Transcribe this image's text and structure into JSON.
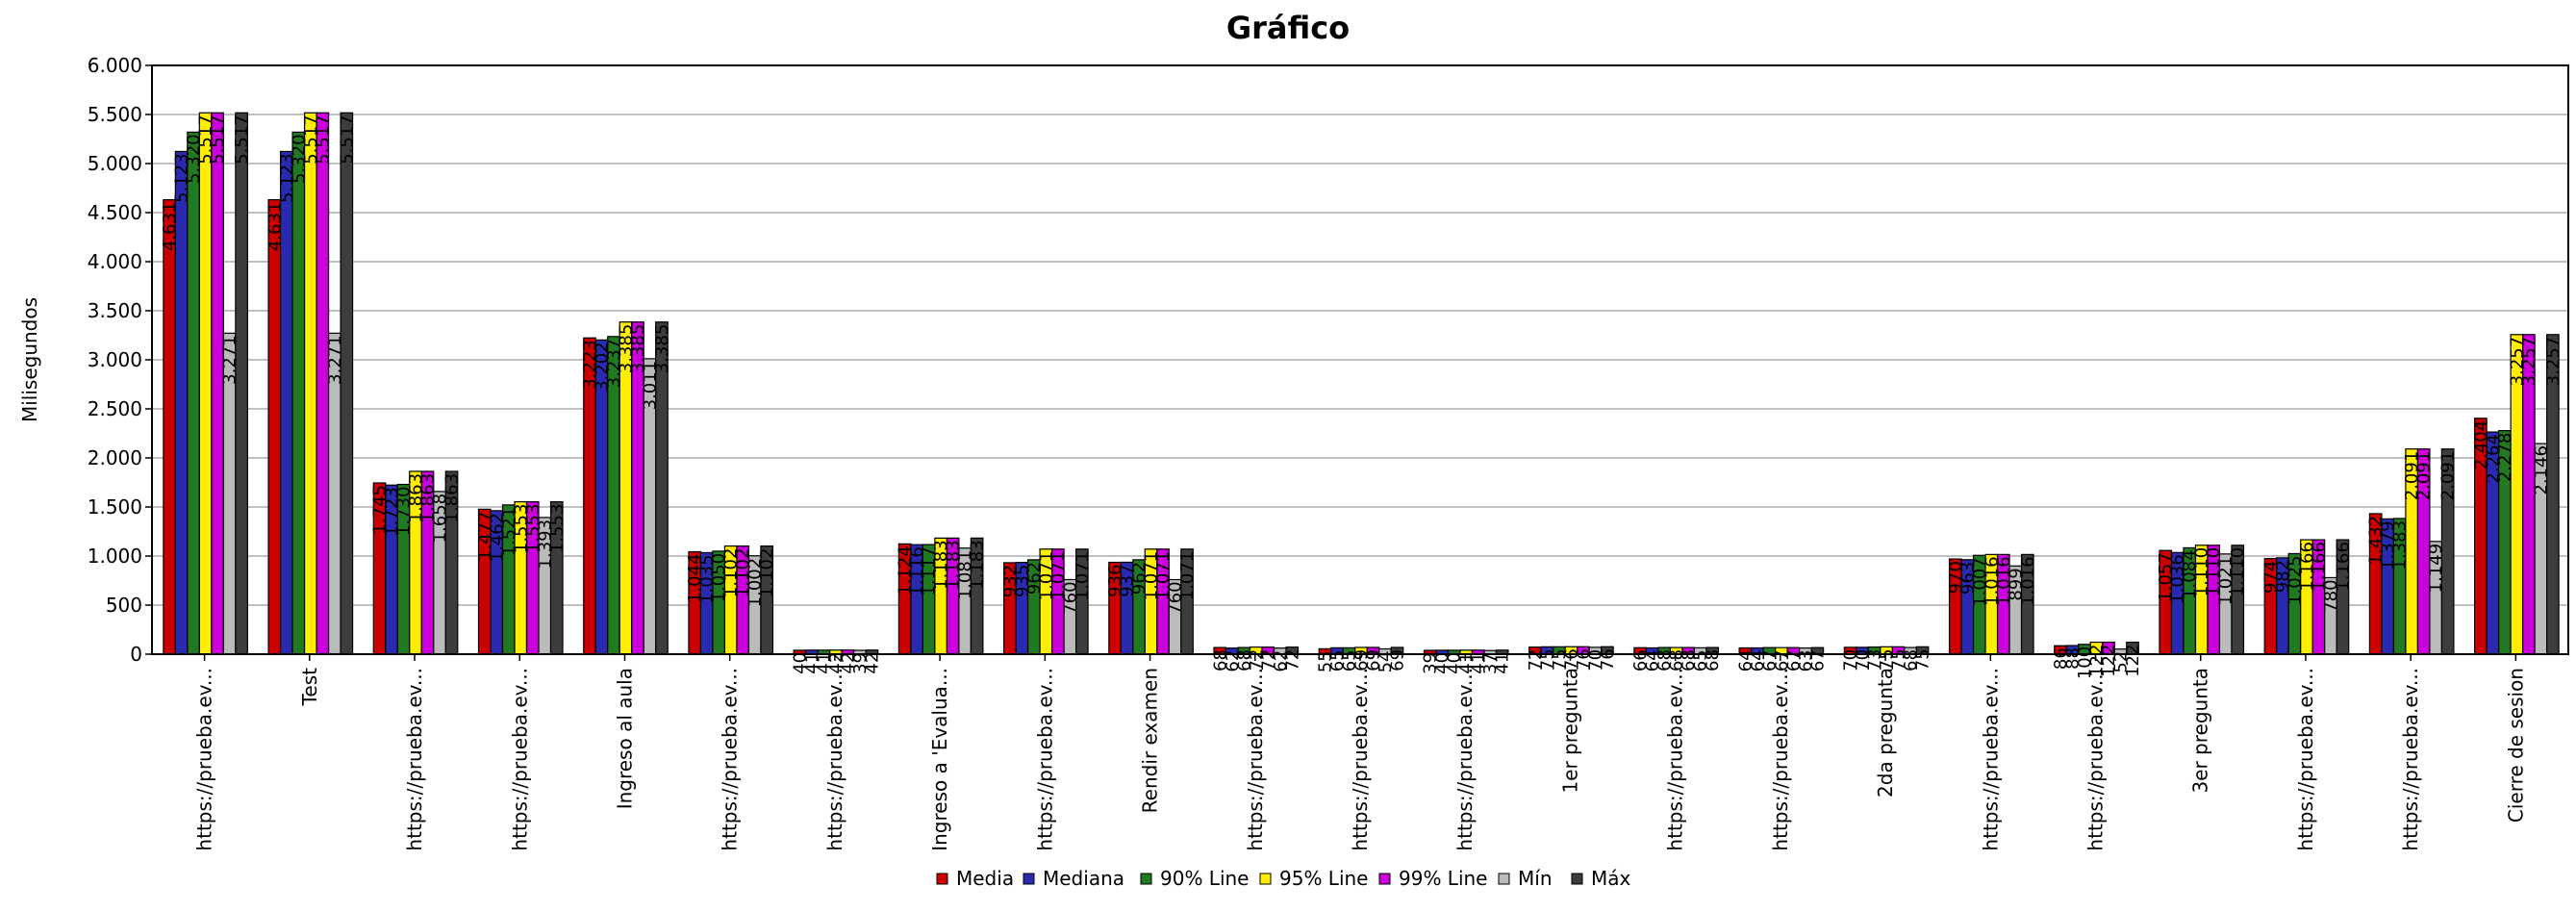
{
  "chart_data": {
    "type": "bar",
    "title": "Gráfico",
    "xlabel": "",
    "ylabel": "Milisegundos",
    "ylim": [
      0,
      6000
    ],
    "yticks": [
      0,
      500,
      1000,
      1500,
      2000,
      2500,
      3000,
      3500,
      4000,
      4500,
      5000,
      5500,
      6000
    ],
    "ytick_labels": [
      "0",
      "500",
      "1.000",
      "1.500",
      "2.000",
      "2.500",
      "3.000",
      "3.500",
      "4.000",
      "4.500",
      "5.000",
      "5.500",
      "6.000"
    ],
    "grid": true,
    "legend_position": "bottom-center",
    "categories": [
      "https://prueba.ev...",
      "Test",
      "https://prueba.ev...",
      "https://prueba.ev...",
      "Ingreso al aula",
      "https://prueba.ev...",
      "https://prueba.ev...",
      "Ingreso a 'Evalua...",
      "https://prueba.ev...",
      "Rendir examen",
      "https://prueba.ev...",
      "https://prueba.ev...",
      "https://prueba.ev...",
      "1er pregunta",
      "https://prueba.ev...",
      "https://prueba.ev...",
      "2da pregunta",
      "https://prueba.ev...",
      "https://prueba.ev...",
      "3er pregunta",
      "https://prueba.ev...",
      "https://prueba.ev...",
      "Cierre de sesion"
    ],
    "series": [
      {
        "name": "Media",
        "color": "#cc0000",
        "values": [
          4631,
          4631,
          1745,
          1477,
          3223,
          1044,
          40,
          1124,
          932,
          936,
          68,
          55,
          39,
          72,
          66,
          64,
          70,
          970,
          86,
          1057,
          974,
          1432,
          2404
        ],
        "labels": [
          "4.631",
          "4.631",
          "1.745",
          "1.477",
          "3.223",
          "1.044",
          "40",
          "1.124",
          "932",
          "936",
          "68",
          "55",
          "39",
          "72",
          "66",
          "64",
          "70",
          "970",
          "86",
          "1.057",
          "974",
          "1.432",
          "2.404"
        ]
      },
      {
        "name": "Mediana",
        "color": "#2a2ab0",
        "values": [
          5123,
          5123,
          1723,
          1462,
          3202,
          1035,
          41,
          1116,
          935,
          937,
          62,
          65,
          40,
          75,
          64,
          64,
          70,
          963,
          88,
          1036,
          982,
          1379,
          2264
        ],
        "labels": [
          "5.123",
          "5.123",
          "1.723",
          "1.462",
          "3.202",
          "1.035",
          "41",
          "1.116",
          "935",
          "937",
          "62",
          "65",
          "40",
          "75",
          "64",
          "64",
          "70",
          "963",
          "88",
          "1.036",
          "982",
          "1.379",
          "2.264"
        ]
      },
      {
        "name": "90% Line",
        "color": "#217a21",
        "values": [
          5320,
          5320,
          1730,
          1521,
          3237,
          1050,
          41,
          1117,
          962,
          962,
          68,
          65,
          40,
          75,
          68,
          67,
          73,
          1007,
          100,
          1084,
          1025,
          1383,
          2278
        ],
        "labels": [
          "5.320",
          "5.320",
          "1.730",
          "1.521",
          "3.237",
          "1.050",
          "41",
          "1.117",
          "962",
          "962",
          "68",
          "65",
          "40",
          "75",
          "68",
          "67",
          "73",
          "1.007",
          "100",
          "1.084",
          "1.025",
          "1.383",
          "2.278"
        ]
      },
      {
        "name": "95% Line",
        "color": "#ffee00",
        "values": [
          5517,
          5517,
          1863,
          1553,
          3385,
          1102,
          42,
          1183,
          1071,
          1071,
          72,
          69,
          41,
          76,
          68,
          67,
          75,
          1016,
          122,
          1110,
          1166,
          2091,
          3257
        ],
        "labels": [
          "5.517",
          "5.517",
          "1.863",
          "1.553",
          "3.385",
          "1.102",
          "42",
          "1.183",
          "1.071",
          "1.071",
          "72",
          "69",
          "41",
          "76",
          "68",
          "67",
          "75",
          "1.016",
          "122",
          "1.110",
          "1.166",
          "2.091",
          "3.257"
        ]
      },
      {
        "name": "99% Line",
        "color": "#cc00dd",
        "values": [
          5517,
          5517,
          1863,
          1553,
          3385,
          1102,
          42,
          1183,
          1071,
          1071,
          72,
          69,
          41,
          76,
          68,
          67,
          75,
          1016,
          122,
          1110,
          1166,
          2091,
          3257
        ],
        "labels": [
          "5.517",
          "5.517",
          "1.863",
          "1.553",
          "3.385",
          "1.102",
          "42",
          "1.183",
          "1.071",
          "1.071",
          "72",
          "69",
          "41",
          "76",
          "68",
          "67",
          "75",
          "1.016",
          "122",
          "1.110",
          "1.166",
          "2.091",
          "3.257"
        ]
      },
      {
        "name": "Mín",
        "color": "#bbbbbb",
        "values": [
          3271,
          3271,
          1658,
          1393,
          3011,
          1002,
          39,
          1081,
          760,
          760,
          62,
          54,
          37,
          70,
          65,
          63,
          68,
          899,
          52,
          1021,
          780,
          1149,
          2146
        ],
        "labels": [
          "3.271",
          "3.271",
          "1.658",
          "1.393",
          "3.011",
          "1.002",
          "39",
          "1.081",
          "760",
          "760",
          "62",
          "54",
          "37",
          "70",
          "65",
          "63",
          "68",
          "899",
          "52",
          "1.021",
          "780",
          "1.149",
          "2.146"
        ]
      },
      {
        "name": "Máx",
        "color": "#3d3d3d",
        "values": [
          5517,
          5517,
          1863,
          1553,
          3385,
          1102,
          42,
          1183,
          1071,
          1071,
          72,
          69,
          41,
          76,
          68,
          67,
          75,
          1016,
          122,
          1110,
          1166,
          2091,
          3257
        ],
        "labels": [
          "5.517",
          "5.517",
          "1.863",
          "1.553",
          "3.385",
          "1.102",
          "42",
          "1.183",
          "1.071",
          "1.071",
          "72",
          "69",
          "41",
          "76",
          "68",
          "67",
          "75",
          "1.016",
          "122",
          "1.110",
          "1.166",
          "2.091",
          "3.257"
        ]
      }
    ]
  }
}
